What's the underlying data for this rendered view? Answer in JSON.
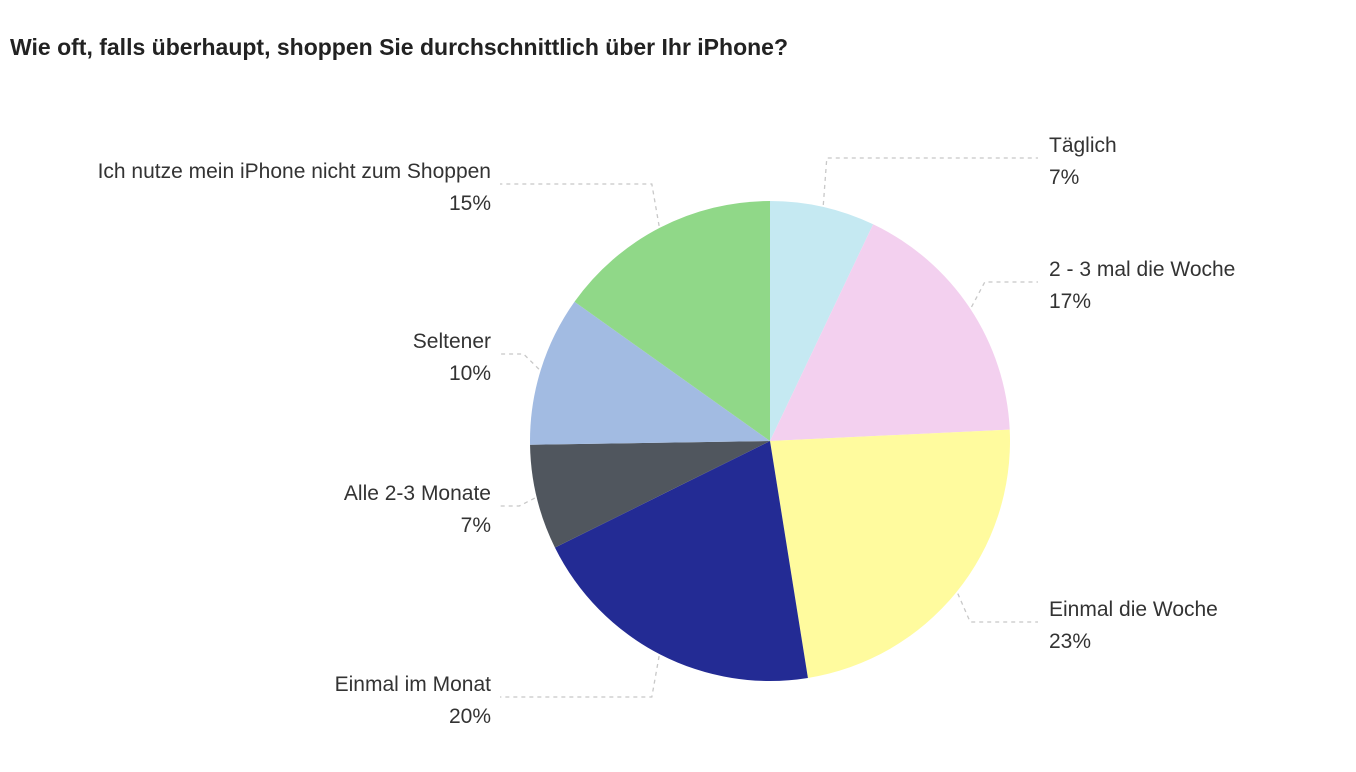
{
  "chart_data": {
    "type": "pie",
    "title": "Wie oft, falls überhaupt, shoppen Sie durchschnittlich über Ihr iPhone?",
    "start_angle_deg": 0,
    "direction": "clockwise",
    "slices": [
      {
        "label": "Täglich",
        "value": 7,
        "value_label": "7%",
        "color": "#c5e9f2"
      },
      {
        "label": "2 - 3 mal die Woche",
        "value": 17,
        "value_label": "17%",
        "color": "#f3d0ef"
      },
      {
        "label": "Einmal die Woche",
        "value": 23,
        "value_label": "23%",
        "color": "#fffb9e"
      },
      {
        "label": "Einmal im Monat",
        "value": 20,
        "value_label": "20%",
        "color": "#232b94"
      },
      {
        "label": "Alle 2-3 Monate",
        "value": 7,
        "value_label": "7%",
        "color": "#50565e"
      },
      {
        "label": "Seltener",
        "value": 10,
        "value_label": "10%",
        "color": "#a2bbe2"
      },
      {
        "label": "Ich nutze mein iPhone nicht zum Shoppen",
        "value": 15,
        "value_label": "15%",
        "color": "#90d888"
      }
    ]
  }
}
